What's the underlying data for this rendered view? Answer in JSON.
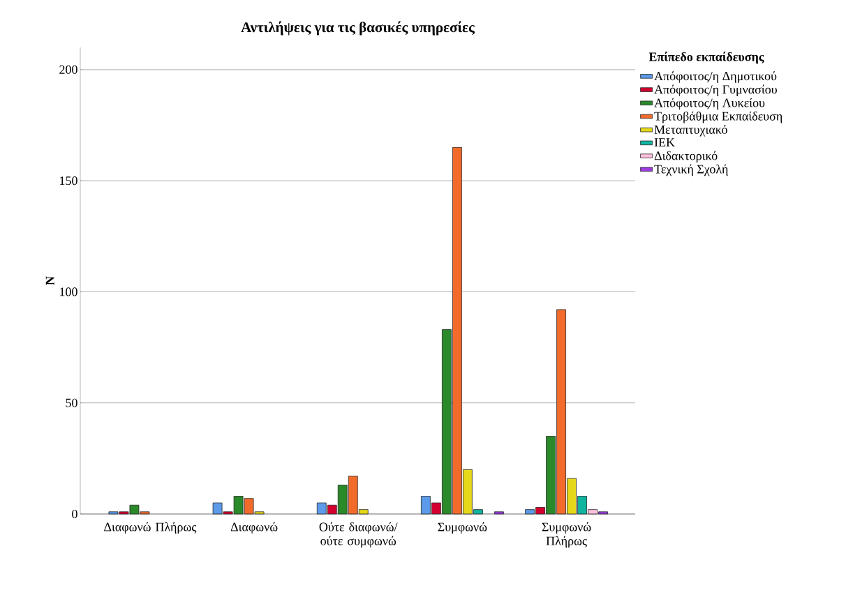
{
  "chart_data": {
    "type": "bar",
    "title": "Αντιλήψεις για τις βασικές υπηρεσίες",
    "ylabel": "N",
    "legend_title": "Επίπεδο εκπαίδευσης",
    "categories": [
      "Διαφωνώ Πλήρως",
      "Διαφωνώ",
      "Ούτε διαφωνώ/ ούτε συμφωνώ",
      "Συμφωνώ",
      "Συμφωνώ Πλήρως"
    ],
    "series": [
      {
        "name": "Απόφοιτος/η Δημοτικού",
        "color": "#5b9bea",
        "values": [
          1,
          5,
          5,
          8,
          2
        ]
      },
      {
        "name": "Απόφοιτος/η Γυμνασίου",
        "color": "#d40030",
        "values": [
          1,
          1,
          4,
          5,
          3
        ]
      },
      {
        "name": "Απόφοιτος/η Λυκείου",
        "color": "#2a8a2a",
        "values": [
          4,
          8,
          13,
          83,
          35
        ]
      },
      {
        "name": "Τριτοβάθμια Εκπαίδευση",
        "color": "#f26b2b",
        "values": [
          1,
          7,
          17,
          165,
          92
        ]
      },
      {
        "name": "Μεταπτυχιακό",
        "color": "#e5d81a",
        "values": [
          null,
          1,
          2,
          20,
          16
        ]
      },
      {
        "name": "ΙΕΚ",
        "color": "#10b5a0",
        "values": [
          null,
          null,
          null,
          2,
          8
        ]
      },
      {
        "name": "Διδακτορικό",
        "color": "#ffc0dd",
        "values": [
          null,
          null,
          null,
          null,
          2
        ]
      },
      {
        "name": "Τεχνική Σχολή",
        "color": "#9b3be0",
        "values": [
          null,
          null,
          null,
          1,
          1
        ]
      }
    ],
    "ylim": [
      0,
      210
    ],
    "yticks": [
      0,
      50,
      100,
      150,
      200
    ],
    "grid": "y",
    "legend": "right"
  }
}
